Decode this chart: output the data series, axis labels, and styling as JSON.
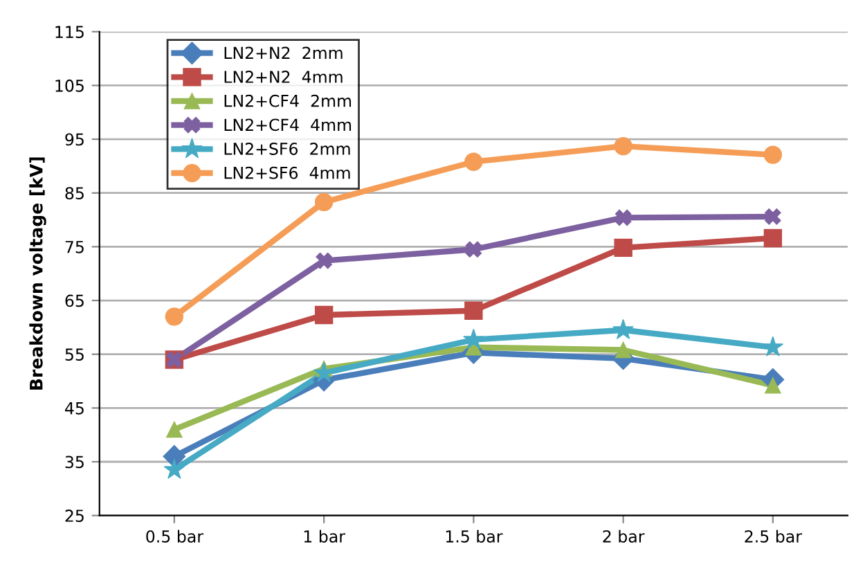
{
  "chart_data": {
    "type": "line",
    "ylabel": "Breakdown voltage [kV]",
    "categories": [
      "0.5 bar",
      "1 bar",
      "1.5 bar",
      "2 bar",
      "2.5 bar"
    ],
    "series": [
      {
        "name": "LN2+N2  2mm",
        "color": "#4a7ebb",
        "marker": "diamond",
        "values": [
          36,
          50.2,
          55.3,
          54.2,
          50.3
        ]
      },
      {
        "name": "LN2+N2  4mm",
        "color": "#be4b48",
        "marker": "square",
        "values": [
          54,
          62.3,
          63.1,
          74.8,
          76.6
        ]
      },
      {
        "name": "LN2+CF4  2mm",
        "color": "#98b954",
        "marker": "triangle",
        "values": [
          41,
          52.3,
          56.3,
          55.8,
          49.2
        ]
      },
      {
        "name": "LN2+CF4  4mm",
        "color": "#7d60a0",
        "marker": "cross",
        "values": [
          54,
          72.4,
          74.5,
          80.4,
          80.6
        ]
      },
      {
        "name": "LN2+SF6  2mm",
        "color": "#46aac5",
        "marker": "star",
        "values": [
          33.5,
          51.5,
          57.7,
          59.5,
          56.3
        ]
      },
      {
        "name": "LN2+SF6  4mm",
        "color": "#f59d56",
        "marker": "circle",
        "values": [
          62,
          83.3,
          90.8,
          93.7,
          92.1
        ]
      }
    ],
    "ylim": [
      25,
      115
    ],
    "yticks": [
      25,
      35,
      45,
      55,
      65,
      75,
      85,
      95,
      105,
      115
    ],
    "grid": "y",
    "legend": "top left"
  }
}
